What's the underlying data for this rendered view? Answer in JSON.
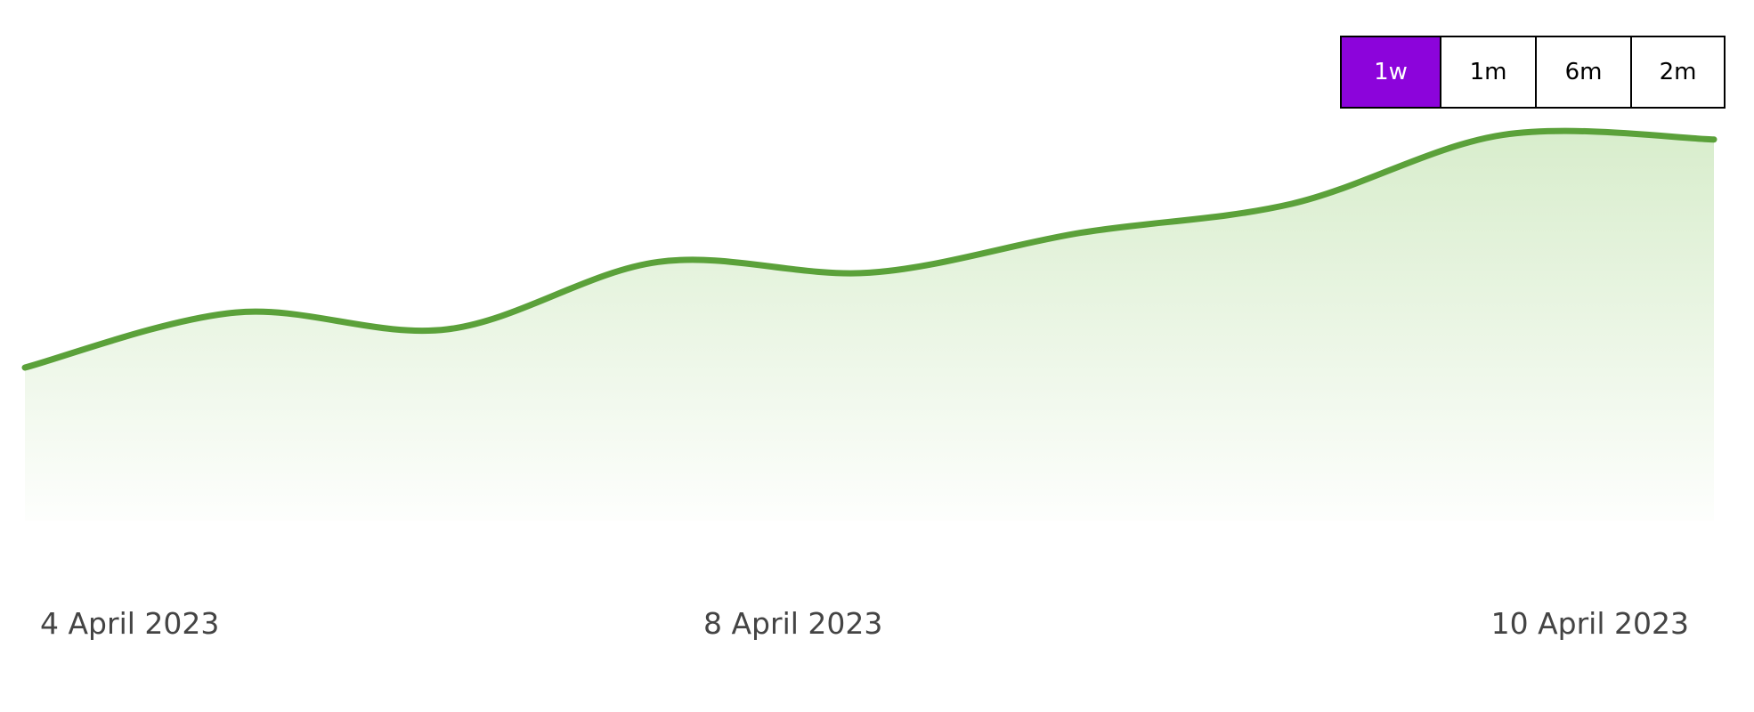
{
  "range_selector": {
    "buttons": [
      {
        "label": "1w",
        "active": true
      },
      {
        "label": "1m",
        "active": false
      },
      {
        "label": "6m",
        "active": false
      },
      {
        "label": "2m",
        "active": false
      }
    ],
    "active_color": "#8C04DB"
  },
  "chart_data": {
    "type": "area",
    "x": [
      "2023-04-04",
      "2023-04-05",
      "2023-04-06",
      "2023-04-07",
      "2023-04-08",
      "2023-04-08T12:00",
      "2023-04-09",
      "2023-04-09T12:00",
      "2023-04-10"
    ],
    "values": [
      100,
      136,
      125,
      169,
      162,
      188,
      207,
      252,
      249
    ],
    "x_ticks": [
      "4 April 2023",
      "8 April 2023",
      "10 April 2023"
    ],
    "ylim": [
      0,
      330
    ],
    "title": "",
    "xlabel": "",
    "ylabel": "",
    "grid": false,
    "line_color": "#5BA13A",
    "fill_color": "#D8EDCC"
  }
}
